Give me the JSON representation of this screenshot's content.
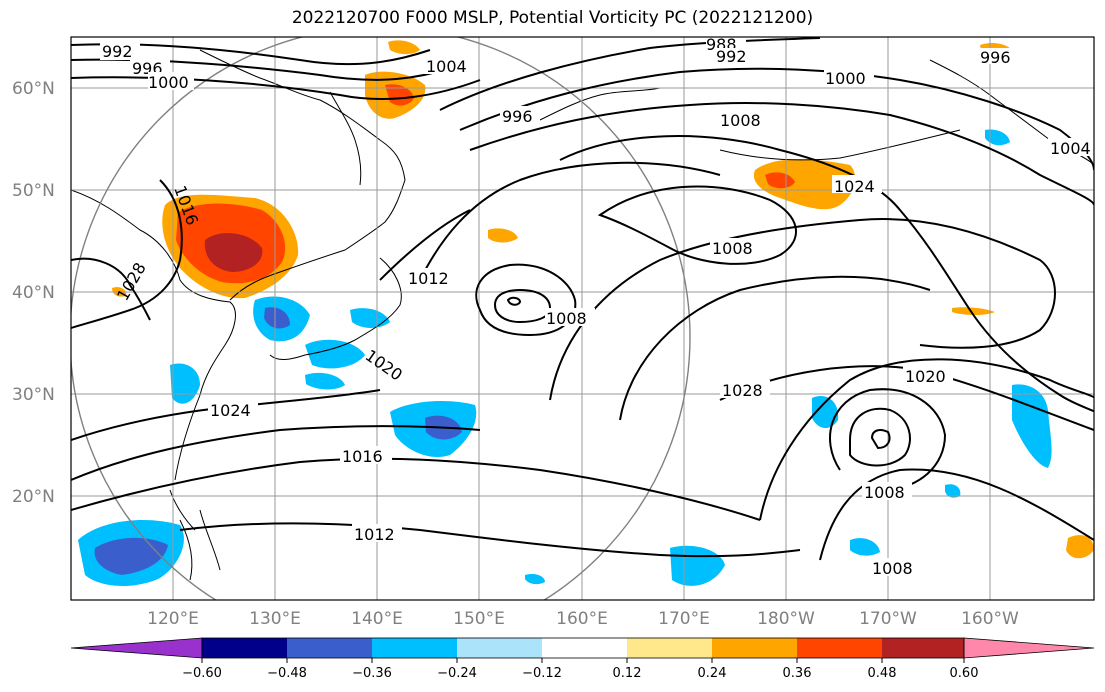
{
  "title": "2022120700 F000 MSLP, Potential Vorticity PC (2022121200)",
  "lat_labels": [
    "60°N",
    "50°N",
    "40°N",
    "30°N",
    "20°N"
  ],
  "lon_labels": [
    "120°E",
    "130°E",
    "140°E",
    "150°E",
    "160°E",
    "170°E",
    "180°W",
    "170°W",
    "160°W"
  ],
  "isobar_labels": [
    "992",
    "996",
    "1000",
    "988",
    "992",
    "1004",
    "996",
    "1000",
    "1008",
    "1004",
    "1016",
    "1024",
    "1028",
    "1012",
    "1008",
    "1008",
    "1020",
    "1028",
    "1020",
    "1024",
    "1016",
    "1012",
    "1008",
    "1008",
    "996"
  ],
  "colorbar": {
    "colors": [
      "#9932cc",
      "#00008b",
      "#3a5fcd",
      "#00bfff",
      "#abe3fa",
      "#ffffff",
      "#ffe88c",
      "#ffa500",
      "#ff4500",
      "#b22222",
      "#ff88aa"
    ],
    "tick_labels": [
      "−0.60",
      "−0.48",
      "−0.36",
      "−0.24",
      "−0.12",
      "0.12",
      "0.24",
      "0.36",
      "0.48",
      "0.60"
    ]
  },
  "colors": {
    "grid": "#9a9a9a",
    "contour": "#000000",
    "pv_positive": [
      "#ffe88c",
      "#ffa500",
      "#ff4500",
      "#b22222"
    ],
    "pv_negative": [
      "#abe3fa",
      "#00bfff",
      "#3a5fcd"
    ]
  }
}
